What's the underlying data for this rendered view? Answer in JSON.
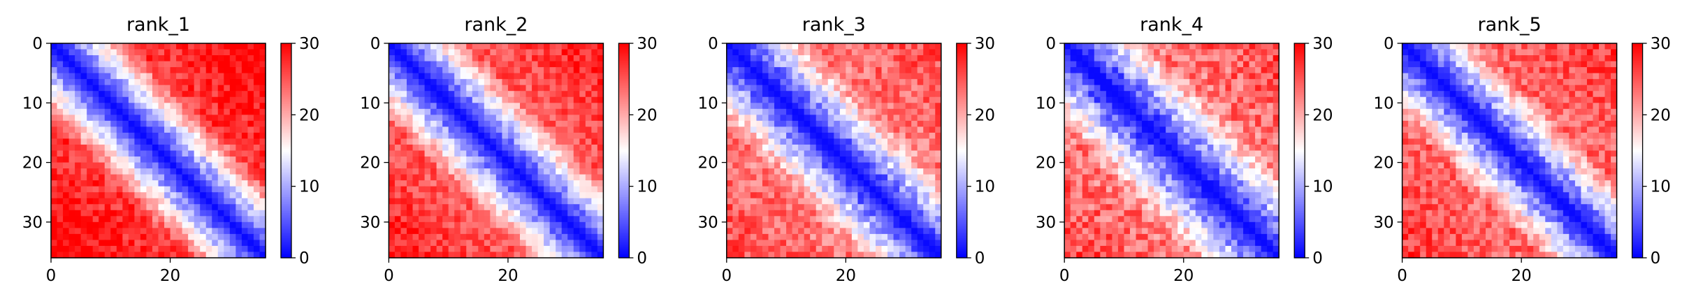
{
  "figure": {
    "background": "#ffffff"
  },
  "chart_data": [
    {
      "type": "heatmap",
      "title": "rank_1",
      "size": 36,
      "xticks": [
        0,
        20
      ],
      "yticks": [
        0,
        10,
        20,
        30
      ],
      "colorbar": {
        "min": 0,
        "max": 30,
        "ticks": [
          0,
          10,
          20,
          30
        ],
        "colormap": "bwr",
        "colors": [
          "#0000ff",
          "#ffffff",
          "#ff0000"
        ]
      },
      "model": {
        "slope": 0.9,
        "plateau": 27,
        "corner_boost": 4,
        "noise": 3,
        "seed": 11
      }
    },
    {
      "type": "heatmap",
      "title": "rank_2",
      "size": 36,
      "xticks": [
        0,
        20
      ],
      "yticks": [
        0,
        10,
        20,
        30
      ],
      "colorbar": {
        "min": 0,
        "max": 30,
        "ticks": [
          0,
          10,
          20,
          30
        ],
        "colormap": "bwr",
        "colors": [
          "#0000ff",
          "#ffffff",
          "#ff0000"
        ]
      },
      "model": {
        "slope": 0.85,
        "plateau": 25,
        "corner_boost": 4,
        "noise": 3,
        "seed": 23
      }
    },
    {
      "type": "heatmap",
      "title": "rank_3",
      "size": 36,
      "xticks": [
        0,
        20
      ],
      "yticks": [
        0,
        10,
        20,
        30
      ],
      "colorbar": {
        "min": 0,
        "max": 30,
        "ticks": [
          0,
          10,
          20,
          30
        ],
        "colormap": "bwr",
        "colors": [
          "#0000ff",
          "#ffffff",
          "#ff0000"
        ]
      },
      "model": {
        "slope": 0.75,
        "plateau": 23,
        "corner_boost": 3,
        "noise": 3.5,
        "seed": 37
      }
    },
    {
      "type": "heatmap",
      "title": "rank_4",
      "size": 36,
      "xticks": [
        0,
        20
      ],
      "yticks": [
        0,
        10,
        20,
        30
      ],
      "colorbar": {
        "min": 0,
        "max": 30,
        "ticks": [
          0,
          10,
          20,
          30
        ],
        "colormap": "bwr",
        "colors": [
          "#0000ff",
          "#ffffff",
          "#ff0000"
        ]
      },
      "model": {
        "slope": 0.7,
        "plateau": 23,
        "corner_boost": 3,
        "noise": 4,
        "seed": 51
      }
    },
    {
      "type": "heatmap",
      "title": "rank_5",
      "size": 36,
      "xticks": [
        0,
        20
      ],
      "yticks": [
        0,
        10,
        20,
        30
      ],
      "colorbar": {
        "min": 0,
        "max": 30,
        "ticks": [
          0,
          10,
          20,
          30
        ],
        "colormap": "bwr",
        "colors": [
          "#0000ff",
          "#ffffff",
          "#ff0000"
        ]
      },
      "model": {
        "slope": 0.85,
        "plateau": 24,
        "corner_boost": 3,
        "noise": 3.5,
        "seed": 67
      }
    }
  ]
}
